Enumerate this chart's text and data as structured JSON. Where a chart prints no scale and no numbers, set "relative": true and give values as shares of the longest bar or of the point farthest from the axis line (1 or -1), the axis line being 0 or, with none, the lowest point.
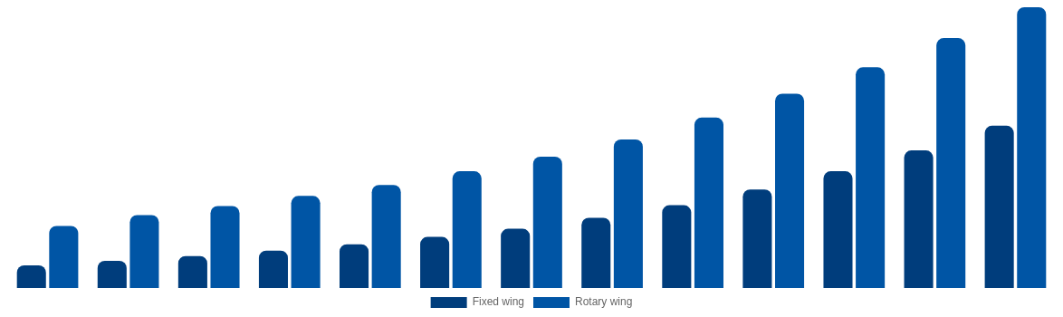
{
  "chart_data": {
    "type": "bar",
    "relative": true,
    "categories": [
      null,
      null,
      null,
      null,
      null,
      null,
      null,
      null,
      null,
      null,
      null,
      null,
      null
    ],
    "series": [
      {
        "name": "Fixed wing",
        "color": "#003d7c",
        "values": [
          0.081,
          0.097,
          0.114,
          0.133,
          0.156,
          0.182,
          0.211,
          0.25,
          0.295,
          0.351,
          0.416,
          0.49,
          0.578
        ]
      },
      {
        "name": "Rotary wing",
        "color": "#0055a5",
        "values": [
          0.221,
          0.26,
          0.292,
          0.328,
          0.367,
          0.416,
          0.468,
          0.529,
          0.607,
          0.692,
          0.786,
          0.89,
          1
        ]
      }
    ],
    "legend": "bottom"
  }
}
